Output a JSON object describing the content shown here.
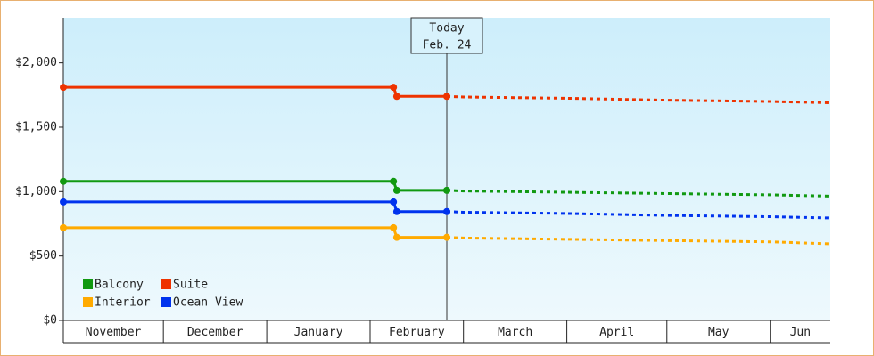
{
  "chart_data": {
    "type": "line",
    "x": [
      0,
      99,
      100,
      115,
      120,
      151,
      181,
      212,
      230
    ],
    "xlim": [
      0,
      230
    ],
    "xticks": [
      {
        "value": 0,
        "label": "November"
      },
      {
        "value": 30,
        "label": "December"
      },
      {
        "value": 61,
        "label": "January"
      },
      {
        "value": 92,
        "label": "February"
      },
      {
        "value": 120,
        "label": "March"
      },
      {
        "value": 151,
        "label": "April"
      },
      {
        "value": 181,
        "label": "May"
      },
      {
        "value": 212,
        "label": "Jun"
      }
    ],
    "ylim": [
      0,
      2350
    ],
    "yticks": [
      {
        "value": 0,
        "label": "$0"
      },
      {
        "value": 500,
        "label": "$500"
      },
      {
        "value": 1000,
        "label": "$1,000"
      },
      {
        "value": 1500,
        "label": "$1,500"
      },
      {
        "value": 2000,
        "label": "$2,000"
      }
    ],
    "annotation": {
      "x": 115,
      "label": [
        "Today",
        "Feb. 24"
      ]
    },
    "legend": "bottom-left",
    "series": [
      {
        "name": "Balcony",
        "color": "#119911",
        "values": [
          1080,
          1080,
          1010,
          1010,
          1005,
          995,
          985,
          975,
          965
        ]
      },
      {
        "name": "Suite",
        "color": "#ee3300",
        "values": [
          1810,
          1810,
          1740,
          1740,
          1735,
          1725,
          1710,
          1700,
          1690
        ]
      },
      {
        "name": "Interior",
        "color": "#ffaa00",
        "values": [
          720,
          720,
          645,
          645,
          640,
          630,
          620,
          610,
          595
        ]
      },
      {
        "name": "Ocean View",
        "color": "#0033ee",
        "values": [
          920,
          920,
          845,
          845,
          840,
          830,
          815,
          805,
          795
        ]
      }
    ]
  }
}
